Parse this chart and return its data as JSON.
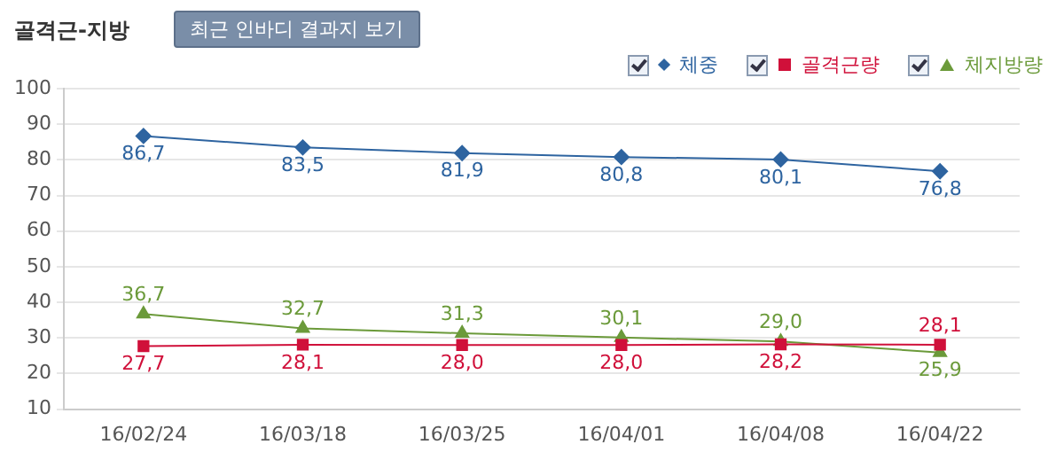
{
  "chart_data": {
    "type": "line",
    "title": "골격근-지방",
    "annotations": [
      "최근 인바디 결과지 보기"
    ],
    "categories": [
      "16/02/24",
      "16/03/18",
      "16/03/25",
      "16/04/01",
      "16/04/08",
      "16/04/22"
    ],
    "series": [
      {
        "name": "체중",
        "color": "#2e64a0",
        "marker": "diamond",
        "values": [
          86.7,
          83.5,
          81.9,
          80.8,
          80.1,
          76.8
        ],
        "value_labels": [
          "86,7",
          "83,5",
          "81,9",
          "80,8",
          "80,1",
          "76,8"
        ]
      },
      {
        "name": "골격근량",
        "color": "#d0103a",
        "marker": "square",
        "values": [
          27.7,
          28.1,
          28.0,
          28.0,
          28.2,
          28.1
        ],
        "value_labels": [
          "27,7",
          "28,1",
          "28,0",
          "28,0",
          "28,2",
          "28,1"
        ]
      },
      {
        "name": "체지방량",
        "color": "#6b9a3a",
        "marker": "triangle",
        "values": [
          36.7,
          32.7,
          31.3,
          30.1,
          29.0,
          25.9
        ],
        "value_labels": [
          "36,7",
          "32,7",
          "31,3",
          "30,1",
          "29,0",
          "25,9"
        ]
      }
    ],
    "ylim": [
      10,
      100
    ],
    "yticks": [
      10,
      20,
      30,
      40,
      50,
      60,
      70,
      80,
      90,
      100
    ],
    "grid": "y",
    "legend": "top right"
  }
}
